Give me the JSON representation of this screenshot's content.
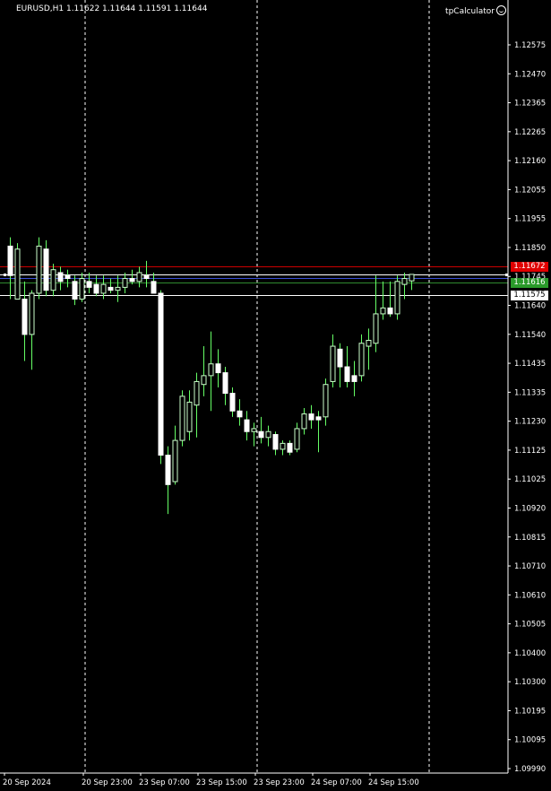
{
  "header": {
    "symbol_info": "EURUSD,H1  1.11622 1.11644 1.11591 1.11644",
    "indicator_name": "tpCalculator"
  },
  "colors": {
    "background": "#000000",
    "bull_candle": "#ccffcc",
    "bear_candle": "#ffffff",
    "wick": "#66ff66",
    "grid": "#ffffff",
    "line_upper": "#cc0000",
    "line_bid": "#ffffff",
    "line_blue": "#3a4fd6",
    "line_green": "#2f8a2f",
    "line_white": "#ffffff"
  },
  "price_labels": [
    {
      "id": "upper",
      "text": "1.11672",
      "value": 1.11672,
      "bg": "#e00000",
      "fg": "#ffffff"
    },
    {
      "id": "green",
      "text": "1.11616",
      "value": 1.11616,
      "bg": "#2a9a2a",
      "fg": "#ffffff"
    },
    {
      "id": "lower",
      "text": "1.11575",
      "value": 1.11575,
      "bg": "#ffffff",
      "fg": "#000000"
    }
  ],
  "chart_data": {
    "type": "candlestick",
    "ylim": [
      1.0995,
      1.1257
    ],
    "y_ticks": [
      "1.12575",
      "1.12470",
      "1.12365",
      "1.12265",
      "1.12160",
      "1.12055",
      "1.11955",
      "1.11850",
      "1.11745",
      "1.11640",
      "1.11540",
      "1.11435",
      "1.11335",
      "1.11230",
      "1.11125",
      "1.11025",
      "1.10920",
      "1.10815",
      "1.10710",
      "1.10610",
      "1.10505",
      "1.10400",
      "1.10300",
      "1.10195",
      "1.10095",
      "1.09990"
    ],
    "x_ticks": [
      {
        "label": "20 Sep 2024",
        "index": 0
      },
      {
        "label": "20 Sep 23:00",
        "index": 11
      },
      {
        "label": "23 Sep 07:00",
        "index": 19
      },
      {
        "label": "23 Sep 15:00",
        "index": 27
      },
      {
        "label": "23 Sep 23:00",
        "index": 35
      },
      {
        "label": "24 Sep 07:00",
        "index": 43
      },
      {
        "label": "24 Sep 15:00",
        "index": 51
      }
    ],
    "period_separators": [
      11,
      35,
      59
    ],
    "horizontal_lines": [
      {
        "name": "upper",
        "price": 1.11672,
        "color_key": "line_upper"
      },
      {
        "name": "bid",
        "price": 1.11644,
        "color_key": "line_bid"
      },
      {
        "name": "blue",
        "price": 1.11632,
        "color_key": "line_blue"
      },
      {
        "name": "green",
        "price": 1.11616,
        "color_key": "line_green"
      },
      {
        "name": "lower",
        "price": 1.11575,
        "color_key": "line_white"
      }
    ],
    "candles": [
      {
        "o": 1.1174,
        "h": 1.1177,
        "l": 1.1156,
        "c": 1.1164
      },
      {
        "o": 1.1156,
        "h": 1.1175,
        "l": 1.1156,
        "c": 1.1173
      },
      {
        "o": 1.1156,
        "h": 1.1162,
        "l": 1.1135,
        "c": 1.1144
      },
      {
        "o": 1.1144,
        "h": 1.1159,
        "l": 1.1132,
        "c": 1.1158
      },
      {
        "o": 1.1158,
        "h": 1.1177,
        "l": 1.1156,
        "c": 1.1174
      },
      {
        "o": 1.1173,
        "h": 1.1176,
        "l": 1.1157,
        "c": 1.1159
      },
      {
        "o": 1.1159,
        "h": 1.1168,
        "l": 1.1157,
        "c": 1.1166
      },
      {
        "o": 1.1165,
        "h": 1.1167,
        "l": 1.1159,
        "c": 1.1162
      },
      {
        "o": 1.1164,
        "h": 1.1166,
        "l": 1.116,
        "c": 1.1163
      },
      {
        "o": 1.1162,
        "h": 1.1164,
        "l": 1.1154,
        "c": 1.1156
      },
      {
        "o": 1.1156,
        "h": 1.1165,
        "l": 1.1155,
        "c": 1.1163
      },
      {
        "o": 1.1162,
        "h": 1.1165,
        "l": 1.1158,
        "c": 1.116
      },
      {
        "o": 1.1161,
        "h": 1.1164,
        "l": 1.1157,
        "c": 1.1158
      },
      {
        "o": 1.1158,
        "h": 1.1164,
        "l": 1.1156,
        "c": 1.1161
      },
      {
        "o": 1.116,
        "h": 1.1163,
        "l": 1.1158,
        "c": 1.1159
      },
      {
        "o": 1.1159,
        "h": 1.1164,
        "l": 1.1155,
        "c": 1.116
      },
      {
        "o": 1.116,
        "h": 1.1165,
        "l": 1.1158,
        "c": 1.1163
      },
      {
        "o": 1.1163,
        "h": 1.1166,
        "l": 1.1161,
        "c": 1.1162
      },
      {
        "o": 1.1162,
        "h": 1.1167,
        "l": 1.116,
        "c": 1.1165
      },
      {
        "o": 1.1164,
        "h": 1.1169,
        "l": 1.116,
        "c": 1.1163
      },
      {
        "o": 1.1162,
        "h": 1.1165,
        "l": 1.116,
        "c": 1.1158
      },
      {
        "o": 1.1158,
        "h": 1.1159,
        "l": 1.11,
        "c": 1.1103
      },
      {
        "o": 1.1103,
        "h": 1.1106,
        "l": 1.1083,
        "c": 1.1093
      },
      {
        "o": 1.1094,
        "h": 1.1113,
        "l": 1.1093,
        "c": 1.1108
      },
      {
        "o": 1.1108,
        "h": 1.1125,
        "l": 1.1106,
        "c": 1.1123
      },
      {
        "o": 1.1111,
        "h": 1.1125,
        "l": 1.1108,
        "c": 1.1121
      },
      {
        "o": 1.112,
        "h": 1.1131,
        "l": 1.1109,
        "c": 1.1128
      },
      {
        "o": 1.1127,
        "h": 1.114,
        "l": 1.1123,
        "c": 1.113
      },
      {
        "o": 1.113,
        "h": 1.1145,
        "l": 1.1118,
        "c": 1.1134
      },
      {
        "o": 1.1134,
        "h": 1.1139,
        "l": 1.1126,
        "c": 1.1131
      },
      {
        "o": 1.1131,
        "h": 1.1133,
        "l": 1.112,
        "c": 1.1124
      },
      {
        "o": 1.1124,
        "h": 1.1126,
        "l": 1.1116,
        "c": 1.1118
      },
      {
        "o": 1.1118,
        "h": 1.1122,
        "l": 1.1113,
        "c": 1.1116
      },
      {
        "o": 1.1115,
        "h": 1.1118,
        "l": 1.1108,
        "c": 1.1111
      },
      {
        "o": 1.1111,
        "h": 1.1114,
        "l": 1.1106,
        "c": 1.1112
      },
      {
        "o": 1.1111,
        "h": 1.1116,
        "l": 1.1107,
        "c": 1.1109
      },
      {
        "o": 1.1109,
        "h": 1.1113,
        "l": 1.1106,
        "c": 1.1111
      },
      {
        "o": 1.111,
        "h": 1.1111,
        "l": 1.1103,
        "c": 1.1105
      },
      {
        "o": 1.1105,
        "h": 1.1108,
        "l": 1.1103,
        "c": 1.1107
      },
      {
        "o": 1.1107,
        "h": 1.1108,
        "l": 1.1103,
        "c": 1.1104
      },
      {
        "o": 1.1105,
        "h": 1.1114,
        "l": 1.1104,
        "c": 1.1112
      },
      {
        "o": 1.1112,
        "h": 1.1119,
        "l": 1.111,
        "c": 1.1117
      },
      {
        "o": 1.1117,
        "h": 1.112,
        "l": 1.1112,
        "c": 1.1115
      },
      {
        "o": 1.1116,
        "h": 1.1118,
        "l": 1.1104,
        "c": 1.1115
      },
      {
        "o": 1.1116,
        "h": 1.1129,
        "l": 1.1113,
        "c": 1.1127
      },
      {
        "o": 1.1128,
        "h": 1.1144,
        "l": 1.1126,
        "c": 1.114
      },
      {
        "o": 1.1139,
        "h": 1.1141,
        "l": 1.1126,
        "c": 1.1133
      },
      {
        "o": 1.1133,
        "h": 1.114,
        "l": 1.1126,
        "c": 1.1128
      },
      {
        "o": 1.113,
        "h": 1.1135,
        "l": 1.1123,
        "c": 1.1128
      },
      {
        "o": 1.113,
        "h": 1.1144,
        "l": 1.1128,
        "c": 1.1141
      },
      {
        "o": 1.114,
        "h": 1.1146,
        "l": 1.1132,
        "c": 1.1142
      },
      {
        "o": 1.1141,
        "h": 1.1164,
        "l": 1.1138,
        "c": 1.1151
      },
      {
        "o": 1.1151,
        "h": 1.1162,
        "l": 1.1149,
        "c": 1.1153
      },
      {
        "o": 1.1153,
        "h": 1.1162,
        "l": 1.115,
        "c": 1.1151
      },
      {
        "o": 1.1151,
        "h": 1.1164,
        "l": 1.1149,
        "c": 1.1162
      },
      {
        "o": 1.1161,
        "h": 1.1165,
        "l": 1.1156,
        "c": 1.1163
      },
      {
        "o": 1.11622,
        "h": 1.11644,
        "l": 1.11591,
        "c": 1.11644
      }
    ]
  }
}
